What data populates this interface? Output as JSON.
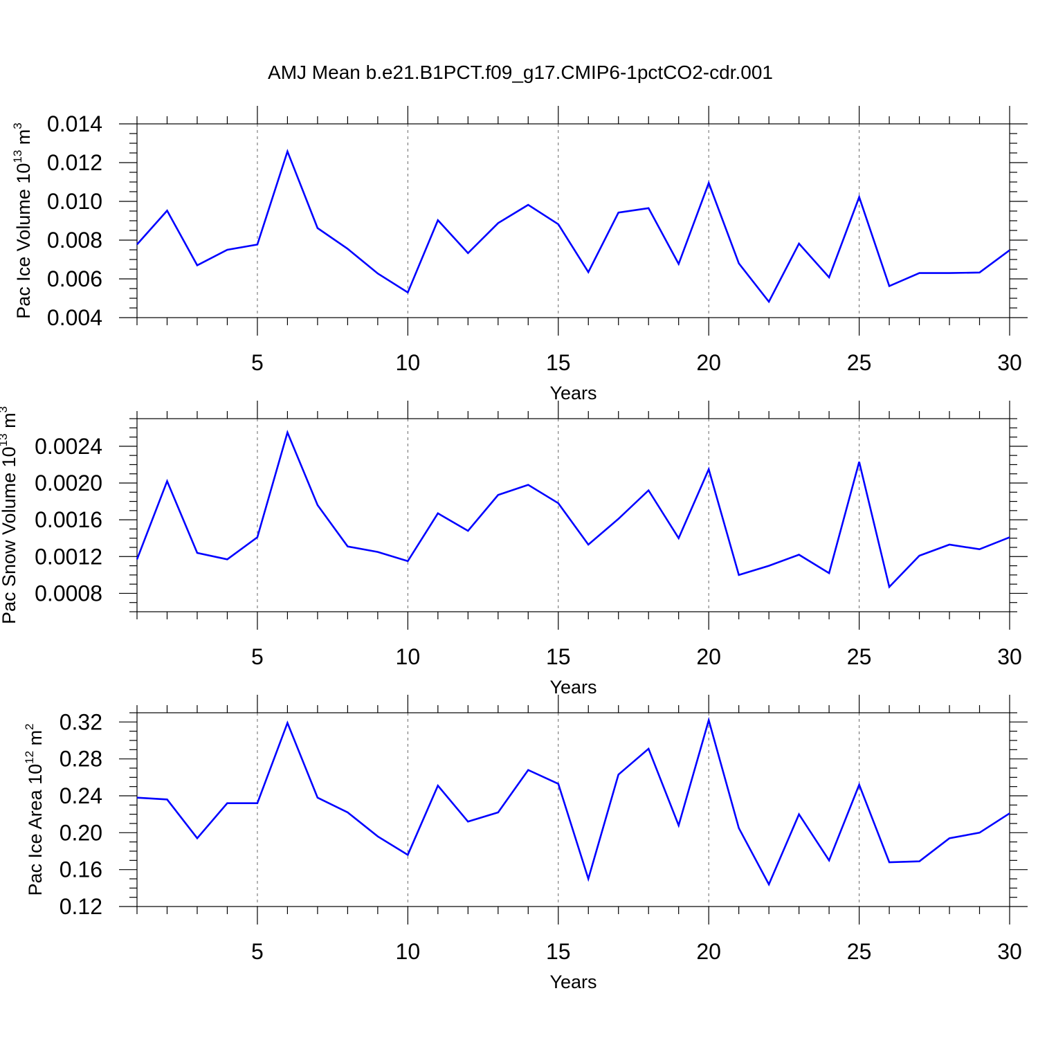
{
  "title": "AMJ Mean b.e21.B1PCT.f09_g17.CMIP6-1pctCO2-cdr.001",
  "line_color": "#0000ff",
  "chart_data": [
    {
      "type": "line",
      "id": "ice-volume",
      "ylabel": "Pac Ice Volume 10",
      "ylabel_exp": "13",
      "ylabel_unit": " m",
      "ylabel_unit_exp": "3",
      "xlabel": "Years",
      "xlim": [
        1,
        30
      ],
      "ylim": [
        0.004,
        0.014
      ],
      "xticks": [
        5,
        10,
        15,
        20,
        25,
        30
      ],
      "xtick_labels": [
        "5",
        "10",
        "15",
        "20",
        "25",
        "30"
      ],
      "yticks": [
        0.004,
        0.006,
        0.008,
        0.01,
        0.012,
        0.014
      ],
      "ytick_labels": [
        "0.004",
        "0.006",
        "0.008",
        "0.010",
        "0.012",
        "0.014"
      ],
      "ytick_minor_step": 0.0005,
      "x": [
        1,
        2,
        3,
        4,
        5,
        6,
        7,
        8,
        9,
        10,
        11,
        12,
        13,
        14,
        15,
        16,
        17,
        18,
        19,
        20,
        21,
        22,
        23,
        24,
        25,
        26,
        27,
        28,
        29,
        30
      ],
      "values": [
        0.00778,
        0.00952,
        0.0067,
        0.0075,
        0.00777,
        0.01258,
        0.00862,
        0.00755,
        0.00628,
        0.0053,
        0.00903,
        0.00733,
        0.00888,
        0.00982,
        0.00882,
        0.00635,
        0.00942,
        0.00965,
        0.00677,
        0.01095,
        0.0068,
        0.00482,
        0.00782,
        0.00608,
        0.01022,
        0.00563,
        0.0063,
        0.0063,
        0.00633,
        0.00748
      ]
    },
    {
      "type": "line",
      "id": "snow-volume",
      "ylabel": "Pac Snow Volume 10",
      "ylabel_exp": "13",
      "ylabel_unit": " m",
      "ylabel_unit_exp": "3",
      "xlabel": "Years",
      "xlim": [
        1,
        30
      ],
      "ylim": [
        0.0006,
        0.0027
      ],
      "xticks": [
        5,
        10,
        15,
        20,
        25,
        30
      ],
      "xtick_labels": [
        "5",
        "10",
        "15",
        "20",
        "25",
        "30"
      ],
      "yticks": [
        0.0008,
        0.0012,
        0.0016,
        0.002,
        0.0024
      ],
      "ytick_labels": [
        "0.0008",
        "0.0012",
        "0.0016",
        "0.0020",
        "0.0024"
      ],
      "ytick_minor_step": 0.0001,
      "x": [
        1,
        2,
        3,
        4,
        5,
        6,
        7,
        8,
        9,
        10,
        11,
        12,
        13,
        14,
        15,
        16,
        17,
        18,
        19,
        20,
        21,
        22,
        23,
        24,
        25,
        26,
        27,
        28,
        29,
        30
      ],
      "values": [
        0.00117,
        0.00202,
        0.00124,
        0.00117,
        0.00141,
        0.00255,
        0.00176,
        0.00131,
        0.00125,
        0.00115,
        0.00167,
        0.00148,
        0.00187,
        0.00198,
        0.00178,
        0.00133,
        0.00161,
        0.00192,
        0.0014,
        0.00215,
        0.001,
        0.0011,
        0.00122,
        0.00102,
        0.00223,
        0.00087,
        0.00121,
        0.00133,
        0.00128,
        0.00141
      ]
    },
    {
      "type": "line",
      "id": "ice-area",
      "ylabel": "Pac Ice Area 10",
      "ylabel_exp": "12",
      "ylabel_unit": " m",
      "ylabel_unit_exp": "2",
      "xlabel": "Years",
      "xlim": [
        1,
        30
      ],
      "ylim": [
        0.12,
        0.33
      ],
      "xticks": [
        5,
        10,
        15,
        20,
        25,
        30
      ],
      "xtick_labels": [
        "5",
        "10",
        "15",
        "20",
        "25",
        "30"
      ],
      "yticks": [
        0.12,
        0.16,
        0.2,
        0.24,
        0.28,
        0.32
      ],
      "ytick_labels": [
        "0.12",
        "0.16",
        "0.20",
        "0.24",
        "0.28",
        "0.32"
      ],
      "ytick_minor_step": 0.01,
      "x": [
        1,
        2,
        3,
        4,
        5,
        6,
        7,
        8,
        9,
        10,
        11,
        12,
        13,
        14,
        15,
        16,
        17,
        18,
        19,
        20,
        21,
        22,
        23,
        24,
        25,
        26,
        27,
        28,
        29,
        30
      ],
      "values": [
        0.238,
        0.236,
        0.194,
        0.232,
        0.232,
        0.319,
        0.238,
        0.222,
        0.196,
        0.176,
        0.251,
        0.212,
        0.222,
        0.268,
        0.253,
        0.15,
        0.263,
        0.291,
        0.208,
        0.322,
        0.205,
        0.144,
        0.22,
        0.17,
        0.252,
        0.168,
        0.169,
        0.194,
        0.2,
        0.221
      ]
    }
  ]
}
